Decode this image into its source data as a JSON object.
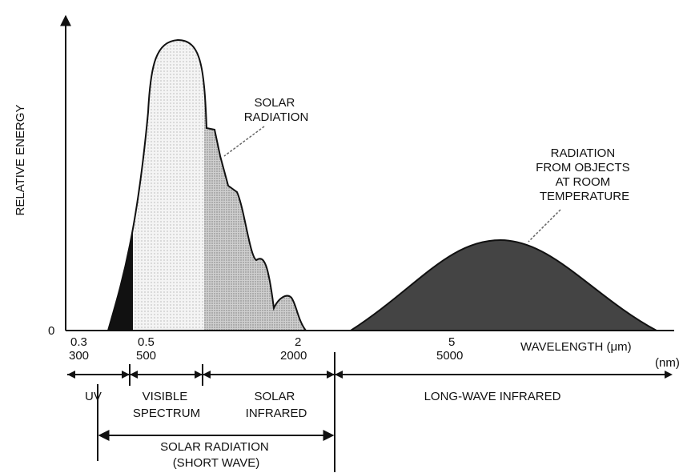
{
  "y_axis_label": "RELATIVE ENERGY",
  "origin_label": "0",
  "x_ticks": [
    {
      "um": "0.3",
      "nm": "300"
    },
    {
      "um": "0.5",
      "nm": "500"
    },
    {
      "um": "2",
      "nm": "2000"
    },
    {
      "um": "5",
      "nm": "5000"
    }
  ],
  "x_axis_label": {
    "um": "WAVELENGTH (μm)",
    "nm": "(nm)"
  },
  "annotations": {
    "solar": [
      "SOLAR",
      "RADIATION"
    ],
    "room": [
      "RADIATION",
      "FROM OBJECTS",
      "AT ROOM",
      "TEMPERATURE"
    ]
  },
  "regions": {
    "uv": [
      "UV"
    ],
    "visible": [
      "VISIBLE",
      "SPECTRUM"
    ],
    "solar_infrared": [
      "SOLAR",
      "INFRARED"
    ],
    "long_wave": [
      "LONG-WAVE INFRARED"
    ],
    "short_wave": [
      "SOLAR RADIATION",
      "(SHORT WAVE)"
    ]
  }
}
